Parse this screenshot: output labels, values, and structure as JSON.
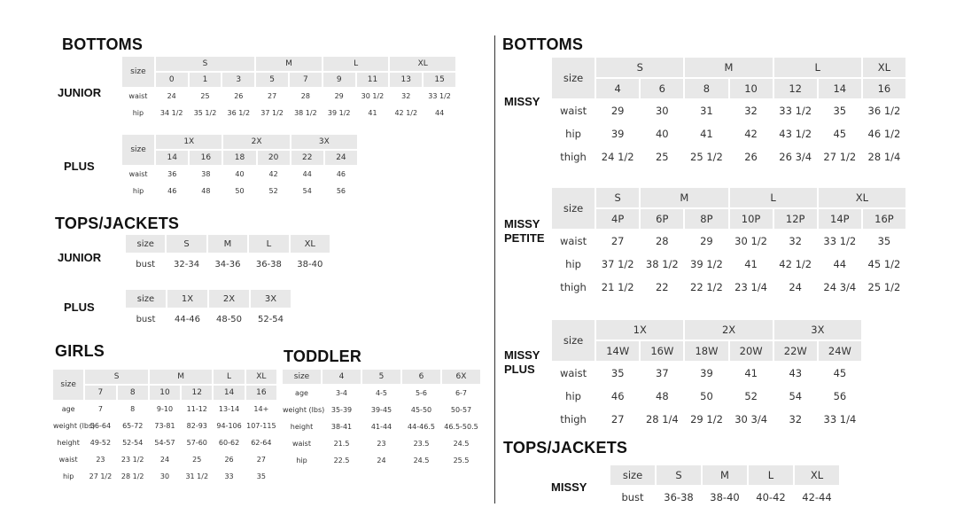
{
  "left": {
    "bottoms_title": "BOTTOMS",
    "tops_title": "TOPS/JACKETS",
    "girls_title": "GIRLS",
    "toddler_title": "TODDLER",
    "labels": {
      "junior_bottoms": "JUNIOR",
      "plus_bottoms": "PLUS",
      "junior_tops": "JUNIOR",
      "plus_tops": "PLUS"
    }
  },
  "right": {
    "bottoms_title": "BOTTOMS",
    "tops_title": "TOPS/JACKETS",
    "labels": {
      "missy": "MISSY",
      "missy_petite": "MISSY PETITE",
      "missy_plus": "MISSY PLUS",
      "missy_tops": "MISSY"
    }
  },
  "tables": {
    "junior_bottoms": {
      "size_label": "size",
      "groups": [
        {
          "label": "S",
          "span": 3
        },
        {
          "label": "M",
          "span": 2
        },
        {
          "label": "L",
          "span": 2
        },
        {
          "label": "XL",
          "span": 2
        }
      ],
      "sizes": [
        "0",
        "1",
        "3",
        "5",
        "7",
        "9",
        "11",
        "13",
        "15"
      ],
      "rows": [
        {
          "label": "waist",
          "values": [
            "24",
            "25",
            "26",
            "27",
            "28",
            "29",
            "30 1/2",
            "32",
            "33 1/2"
          ]
        },
        {
          "label": "hip",
          "values": [
            "34 1/2",
            "35 1/2",
            "36 1/2",
            "37 1/2",
            "38 1/2",
            "39 1/2",
            "41",
            "42 1/2",
            "44"
          ]
        }
      ]
    },
    "plus_bottoms": {
      "size_label": "size",
      "groups": [
        {
          "label": "1X",
          "span": 2
        },
        {
          "label": "2X",
          "span": 2
        },
        {
          "label": "3X",
          "span": 2
        }
      ],
      "sizes": [
        "14",
        "16",
        "18",
        "20",
        "22",
        "24"
      ],
      "rows": [
        {
          "label": "waist",
          "values": [
            "36",
            "38",
            "40",
            "42",
            "44",
            "46"
          ]
        },
        {
          "label": "hip",
          "values": [
            "46",
            "48",
            "50",
            "52",
            "54",
            "56"
          ]
        }
      ]
    },
    "junior_tops": {
      "size_label": "size",
      "sizes": [
        "S",
        "M",
        "L",
        "XL"
      ],
      "rows": [
        {
          "label": "bust",
          "values": [
            "32-34",
            "34-36",
            "36-38",
            "38-40"
          ]
        }
      ]
    },
    "plus_tops": {
      "size_label": "size",
      "sizes": [
        "1X",
        "2X",
        "3X"
      ],
      "rows": [
        {
          "label": "bust",
          "values": [
            "44-46",
            "48-50",
            "52-54"
          ]
        }
      ]
    },
    "girls": {
      "size_label": "size",
      "groups": [
        {
          "label": "S",
          "span": 2
        },
        {
          "label": "M",
          "span": 2
        },
        {
          "label": "L",
          "span": 1
        },
        {
          "label": "XL",
          "span": 1
        }
      ],
      "sizes": [
        "7",
        "8",
        "10",
        "12",
        "14",
        "16"
      ],
      "rows": [
        {
          "label": "age",
          "values": [
            "7",
            "8",
            "9-10",
            "11-12",
            "13-14",
            "14+"
          ]
        },
        {
          "label": "weight (lbs)",
          "values": [
            "56-64",
            "65-72",
            "73-81",
            "82-93",
            "94-106",
            "107-115"
          ]
        },
        {
          "label": "height",
          "values": [
            "49-52",
            "52-54",
            "54-57",
            "57-60",
            "60-62",
            "62-64"
          ]
        },
        {
          "label": "waist",
          "values": [
            "23",
            "23 1/2",
            "24",
            "25",
            "26",
            "27"
          ]
        },
        {
          "label": "hip",
          "values": [
            "27 1/2",
            "28 1/2",
            "30",
            "31 1/2",
            "33",
            "35"
          ]
        }
      ]
    },
    "toddler": {
      "size_label": "size",
      "sizes": [
        "4",
        "5",
        "6",
        "6X"
      ],
      "rows": [
        {
          "label": "age",
          "values": [
            "3-4",
            "4-5",
            "5-6",
            "6-7"
          ]
        },
        {
          "label": "weight (lbs)",
          "values": [
            "35-39",
            "39-45",
            "45-50",
            "50-57"
          ]
        },
        {
          "label": "height",
          "values": [
            "38-41",
            "41-44",
            "44-46.5",
            "46.5-50.5"
          ]
        },
        {
          "label": "waist",
          "values": [
            "21.5",
            "23",
            "23.5",
            "24.5"
          ]
        },
        {
          "label": "hip",
          "values": [
            "22.5",
            "24",
            "24.5",
            "25.5"
          ]
        }
      ]
    },
    "missy": {
      "size_label": "size",
      "groups": [
        {
          "label": "S",
          "span": 2
        },
        {
          "label": "M",
          "span": 2
        },
        {
          "label": "L",
          "span": 2
        },
        {
          "label": "XL",
          "span": 1
        }
      ],
      "sizes": [
        "4",
        "6",
        "8",
        "10",
        "12",
        "14",
        "16"
      ],
      "rows": [
        {
          "label": "waist",
          "values": [
            "29",
            "30",
            "31",
            "32",
            "33 1/2",
            "35",
            "36 1/2"
          ]
        },
        {
          "label": "hip",
          "values": [
            "39",
            "40",
            "41",
            "42",
            "43 1/2",
            "45",
            "46 1/2"
          ]
        },
        {
          "label": "thigh",
          "values": [
            "24 1/2",
            "25",
            "25 1/2",
            "26",
            "26 3/4",
            "27 1/2",
            "28 1/4"
          ]
        }
      ]
    },
    "missy_petite": {
      "size_label": "size",
      "groups": [
        {
          "label": "S",
          "span": 1
        },
        {
          "label": "M",
          "span": 2
        },
        {
          "label": "L",
          "span": 2
        },
        {
          "label": "XL",
          "span": 2
        }
      ],
      "sizes": [
        "4P",
        "6P",
        "8P",
        "10P",
        "12P",
        "14P",
        "16P"
      ],
      "rows": [
        {
          "label": "waist",
          "values": [
            "27",
            "28",
            "29",
            "30 1/2",
            "32",
            "33 1/2",
            "35"
          ]
        },
        {
          "label": "hip",
          "values": [
            "37 1/2",
            "38 1/2",
            "39 1/2",
            "41",
            "42 1/2",
            "44",
            "45 1/2"
          ]
        },
        {
          "label": "thigh",
          "values": [
            "21 1/2",
            "22",
            "22 1/2",
            "23 1/4",
            "24",
            "24 3/4",
            "25 1/2"
          ]
        }
      ]
    },
    "missy_plus": {
      "size_label": "size",
      "groups": [
        {
          "label": "1X",
          "span": 2
        },
        {
          "label": "2X",
          "span": 2
        },
        {
          "label": "3X",
          "span": 2
        }
      ],
      "sizes": [
        "14W",
        "16W",
        "18W",
        "20W",
        "22W",
        "24W"
      ],
      "rows": [
        {
          "label": "waist",
          "values": [
            "35",
            "37",
            "39",
            "41",
            "43",
            "45"
          ]
        },
        {
          "label": "hip",
          "values": [
            "46",
            "48",
            "50",
            "52",
            "54",
            "56"
          ]
        },
        {
          "label": "thigh",
          "values": [
            "27",
            "28 1/4",
            "29 1/2",
            "30 3/4",
            "32",
            "33 1/4"
          ]
        }
      ]
    },
    "missy_tops": {
      "size_label": "size",
      "sizes": [
        "S",
        "M",
        "L",
        "XL"
      ],
      "rows": [
        {
          "label": "bust",
          "values": [
            "36-38",
            "38-40",
            "40-42",
            "42-44"
          ]
        }
      ]
    }
  }
}
